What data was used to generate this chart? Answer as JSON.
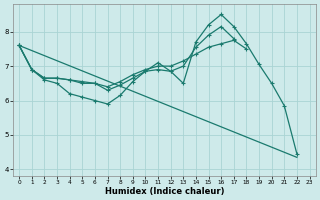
{
  "xlabel": "Humidex (Indice chaleur)",
  "xlim": [
    -0.5,
    23.5
  ],
  "ylim": [
    3.8,
    8.8
  ],
  "yticks": [
    4,
    5,
    6,
    7,
    8
  ],
  "xticks": [
    0,
    1,
    2,
    3,
    4,
    5,
    6,
    7,
    8,
    9,
    10,
    11,
    12,
    13,
    14,
    15,
    16,
    17,
    18,
    19,
    20,
    21,
    22,
    23
  ],
  "background_color": "#ceeaea",
  "grid_color": "#aad4d4",
  "line_color": "#1a7a6e",
  "line1_x": [
    0,
    1,
    2,
    3,
    4,
    5,
    6,
    7,
    8,
    9,
    10,
    11,
    12,
    13,
    14,
    15,
    16,
    17,
    18,
    19,
    20,
    21,
    22
  ],
  "line1_y": [
    7.6,
    6.9,
    6.6,
    6.5,
    6.2,
    6.1,
    6.0,
    5.9,
    6.15,
    6.55,
    6.85,
    7.1,
    6.85,
    6.5,
    7.7,
    8.2,
    8.5,
    8.15,
    7.65,
    7.05,
    6.5,
    5.85,
    4.45
  ],
  "line2_x": [
    0,
    1,
    2,
    3,
    4,
    5,
    6,
    7,
    8,
    9,
    10,
    11,
    12,
    13,
    14,
    15,
    16,
    17,
    18
  ],
  "line2_y": [
    7.6,
    6.9,
    6.65,
    6.65,
    6.6,
    6.55,
    6.5,
    6.4,
    6.55,
    6.75,
    6.9,
    7.0,
    7.0,
    7.15,
    7.35,
    7.55,
    7.65,
    7.75,
    7.5
  ],
  "line3_x": [
    0,
    1,
    2,
    3,
    4,
    5,
    6,
    7,
    8,
    9,
    10,
    11,
    12,
    13,
    14,
    15,
    16,
    17
  ],
  "line3_y": [
    7.6,
    6.9,
    6.65,
    6.65,
    6.6,
    6.5,
    6.5,
    6.3,
    6.45,
    6.65,
    6.85,
    6.9,
    6.85,
    7.0,
    7.55,
    7.9,
    8.15,
    7.8
  ],
  "line4_x": [
    0,
    22
  ],
  "line4_y": [
    7.6,
    4.35
  ]
}
